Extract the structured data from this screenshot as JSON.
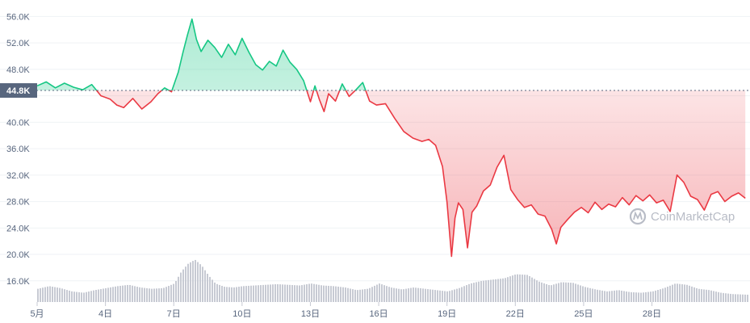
{
  "chart_data": {
    "type": "area",
    "baseline": 44.8,
    "baseline_label": "44.8K",
    "ylim": [
      12.8,
      58.0
    ],
    "yticks": [
      16,
      20,
      24,
      28,
      32,
      36,
      40,
      44,
      48,
      52,
      56
    ],
    "ytick_labels": [
      "16.0K",
      "20.0K",
      "24.0K",
      "28.0K",
      "32.0K",
      "36.0K",
      "40.0K",
      "",
      "48.0K",
      "52.0K",
      "56.0K"
    ],
    "xlim": [
      1,
      32.2
    ],
    "xticks": [
      1,
      4,
      7,
      10,
      13,
      16,
      19,
      22,
      25,
      28
    ],
    "xtick_labels": [
      "5月",
      "4日",
      "7日",
      "10日",
      "13日",
      "16日",
      "19日",
      "22日",
      "25日",
      "28日"
    ],
    "colors": {
      "up": "#16c784",
      "down": "#ea3943",
      "volume": "#c7cad3",
      "grid": "#eff2f5"
    },
    "watermark": "CoinMarketCap",
    "price": {
      "x": [
        1.0,
        1.4,
        1.8,
        2.2,
        2.6,
        3.0,
        3.4,
        3.8,
        4.2,
        4.5,
        4.8,
        5.2,
        5.6,
        6.0,
        6.3,
        6.6,
        6.9,
        7.2,
        7.4,
        7.6,
        7.8,
        8.0,
        8.2,
        8.5,
        8.8,
        9.1,
        9.4,
        9.7,
        10.0,
        10.3,
        10.6,
        10.9,
        11.2,
        11.5,
        11.8,
        12.1,
        12.4,
        12.7,
        13.0,
        13.2,
        13.4,
        13.6,
        13.8,
        14.1,
        14.4,
        14.7,
        15.0,
        15.3,
        15.6,
        15.9,
        16.3,
        16.7,
        17.1,
        17.5,
        17.9,
        18.2,
        18.5,
        18.8,
        19.0,
        19.2,
        19.35,
        19.5,
        19.7,
        19.9,
        20.1,
        20.3,
        20.6,
        20.9,
        21.2,
        21.5,
        21.8,
        22.1,
        22.4,
        22.7,
        23.0,
        23.3,
        23.6,
        23.8,
        24.0,
        24.3,
        24.6,
        24.9,
        25.2,
        25.5,
        25.8,
        26.1,
        26.4,
        26.7,
        27.0,
        27.3,
        27.6,
        27.9,
        28.2,
        28.5,
        28.8,
        29.1,
        29.4,
        29.7,
        30.0,
        30.3,
        30.6,
        30.9,
        31.2,
        31.5,
        31.8,
        32.1
      ],
      "y": [
        45.5,
        46.1,
        45.2,
        45.9,
        45.3,
        44.9,
        45.7,
        44.0,
        43.5,
        42.6,
        42.2,
        43.6,
        42.0,
        43.1,
        44.3,
        45.2,
        44.6,
        47.6,
        50.5,
        53.2,
        55.6,
        52.5,
        50.7,
        52.4,
        51.3,
        49.8,
        51.8,
        50.2,
        52.7,
        50.6,
        48.7,
        47.9,
        49.2,
        48.5,
        50.9,
        49.1,
        48.0,
        46.3,
        43.1,
        45.5,
        43.4,
        41.6,
        44.3,
        43.2,
        45.8,
        43.9,
        44.9,
        46.0,
        43.2,
        42.6,
        42.8,
        40.6,
        38.6,
        37.6,
        37.1,
        37.4,
        36.5,
        33.3,
        27.9,
        19.7,
        25.5,
        27.8,
        26.8,
        21.0,
        26.4,
        27.3,
        29.6,
        30.5,
        33.2,
        35.0,
        29.8,
        28.3,
        27.1,
        27.5,
        26.1,
        25.8,
        23.8,
        21.6,
        24.1,
        25.3,
        26.4,
        27.1,
        26.3,
        27.9,
        26.8,
        27.6,
        27.2,
        28.6,
        27.5,
        28.9,
        28.1,
        29.0,
        27.8,
        28.2,
        26.5,
        32.0,
        30.9,
        28.8,
        28.3,
        26.7,
        29.1,
        29.5,
        28.0,
        28.8,
        29.3,
        28.5
      ]
    },
    "volume": {
      "x": [
        1.0,
        1.5,
        2.0,
        2.5,
        3.0,
        3.5,
        4.0,
        4.5,
        5.0,
        5.5,
        6.0,
        6.5,
        7.0,
        7.3,
        7.6,
        7.9,
        8.2,
        8.5,
        8.8,
        9.2,
        9.6,
        10.0,
        10.5,
        11.0,
        11.5,
        12.0,
        12.5,
        13.0,
        13.5,
        14.0,
        14.5,
        15.0,
        15.5,
        16.0,
        16.5,
        17.0,
        17.5,
        18.0,
        18.5,
        19.0,
        19.5,
        20.0,
        20.5,
        21.0,
        21.5,
        22.0,
        22.5,
        23.0,
        23.5,
        24.0,
        24.5,
        25.0,
        25.5,
        26.0,
        26.5,
        27.0,
        27.5,
        28.0,
        28.5,
        29.0,
        29.5,
        30.0,
        30.5,
        31.0,
        31.5,
        32.2
      ],
      "y": [
        14.8,
        15.2,
        14.9,
        14.4,
        14.2,
        14.6,
        14.9,
        15.2,
        15.4,
        15.0,
        14.8,
        14.9,
        15.6,
        17.4,
        18.6,
        19.2,
        18.3,
        16.8,
        15.6,
        15.1,
        15.0,
        15.2,
        15.3,
        15.4,
        15.5,
        15.4,
        15.3,
        15.6,
        15.3,
        15.2,
        15.0,
        14.6,
        14.8,
        15.6,
        15.0,
        14.7,
        15.0,
        14.8,
        14.6,
        14.4,
        14.9,
        15.6,
        16.0,
        16.2,
        16.4,
        17.0,
        16.9,
        15.9,
        15.3,
        15.8,
        15.7,
        15.1,
        14.7,
        14.4,
        14.6,
        14.3,
        14.2,
        14.4,
        14.9,
        15.6,
        15.4,
        14.8,
        14.6,
        14.2,
        14.0,
        13.9
      ]
    }
  }
}
